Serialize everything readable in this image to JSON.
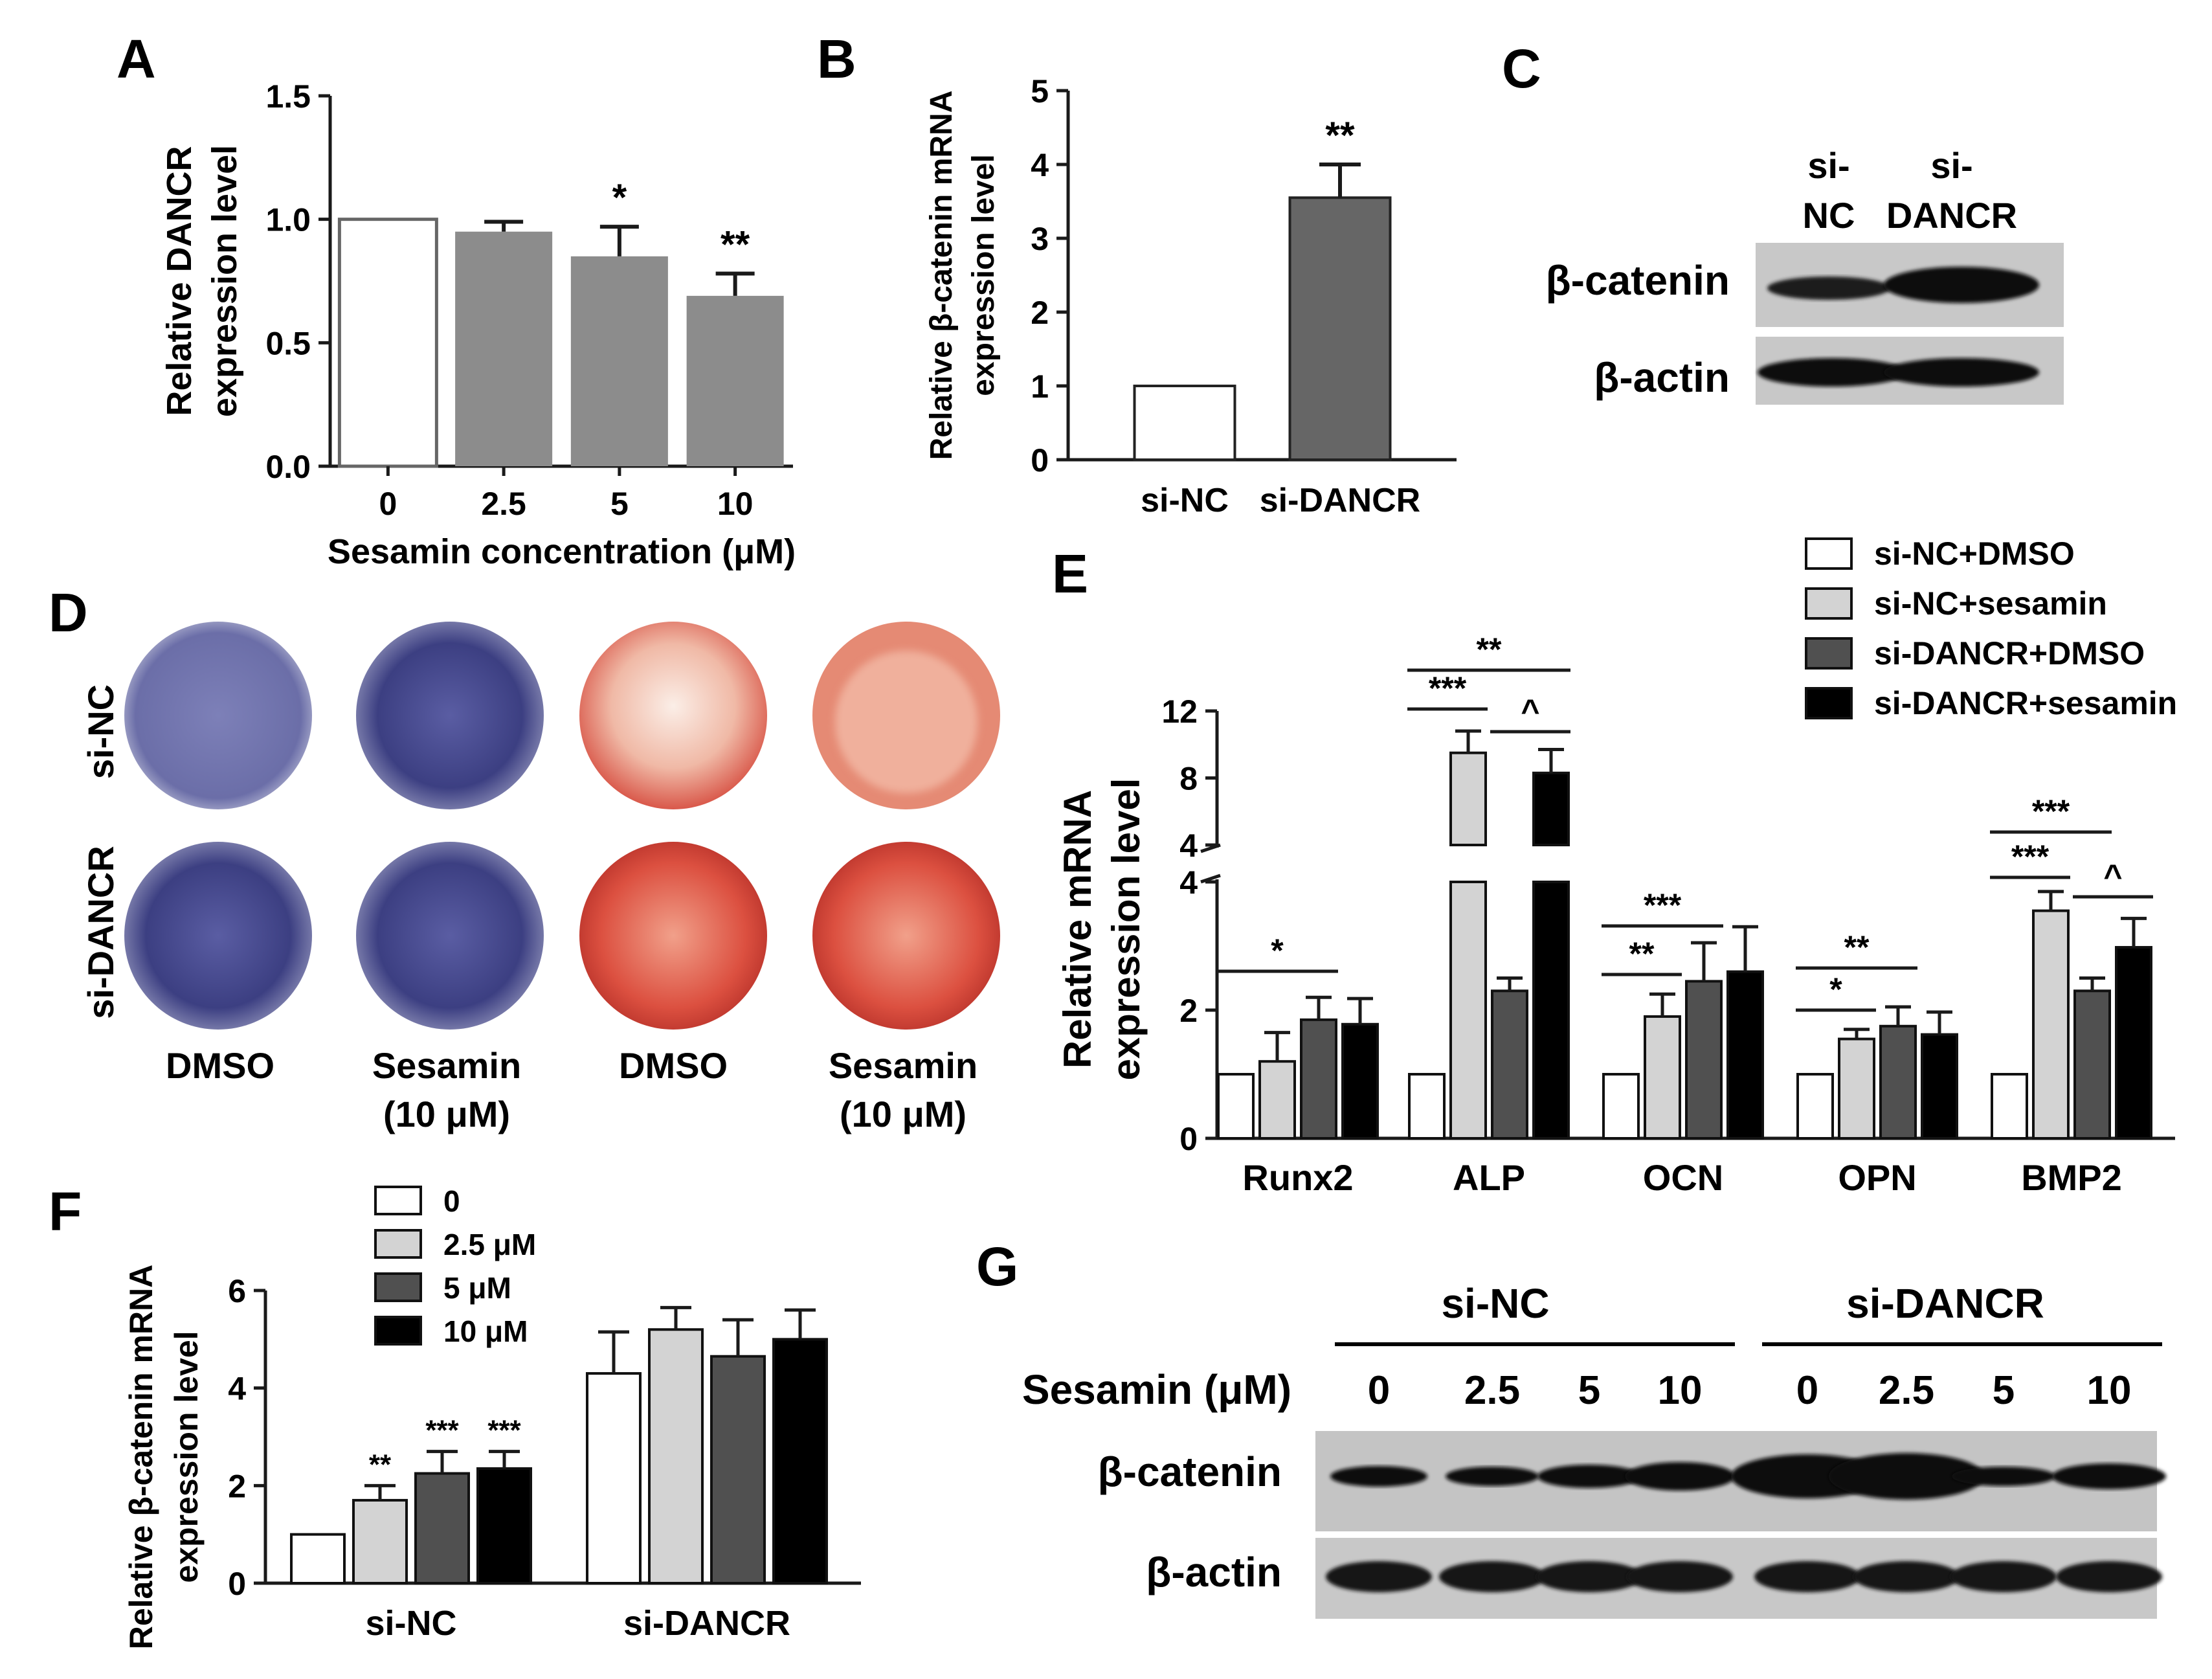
{
  "panels": {
    "A": {
      "letter": "A"
    },
    "B": {
      "letter": "B"
    },
    "C": {
      "letter": "C"
    },
    "D": {
      "letter": "D"
    },
    "E": {
      "letter": "E"
    },
    "F": {
      "letter": "F"
    },
    "G": {
      "letter": "G"
    }
  },
  "colors": {
    "white_bar": "#ffffff",
    "light_gray": "#d3d3d3",
    "mid_gray": "#8c8c8c",
    "dark_gray": "#666666",
    "darker_gray": "#505050",
    "black": "#000000",
    "axis": "#1a1a1a",
    "stain_blue": "#3c3f82",
    "stain_red": "#c8413a"
  },
  "panel_C": {
    "lanes": [
      "si-\nNC",
      "si-\nDANCR"
    ],
    "rows": [
      "β-catenin",
      "β-actin"
    ]
  },
  "panel_D": {
    "row_labels": [
      "si-NC",
      "si-DANCR"
    ],
    "col_labels": [
      "DMSO",
      "Sesamin\n(10 μM)",
      "DMSO",
      "Sesamin\n(10 μM)"
    ]
  },
  "panel_G": {
    "groups": [
      "si-NC",
      "si-DANCR"
    ],
    "treatment_label": "Sesamin (μM)",
    "doses": [
      "0",
      "2.5",
      "5",
      "10",
      "0",
      "2.5",
      "5",
      "10"
    ],
    "rows": [
      "β-catenin",
      "β-actin"
    ]
  },
  "chart_data": [
    {
      "id": "A",
      "type": "bar",
      "categories": [
        "0",
        "2.5",
        "5",
        "10"
      ],
      "values": [
        1.0,
        0.95,
        0.85,
        0.69
      ],
      "errors": [
        0,
        0.04,
        0.12,
        0.09
      ],
      "sig": [
        "",
        "",
        "*",
        "**"
      ],
      "xlabel": "Sesamin concentration (μM)",
      "ylabel": "Relative DANCR\nexpression level",
      "ylim": [
        0,
        1.5
      ],
      "yticks": [
        "0.0",
        "0.5",
        "1.0",
        "1.5"
      ]
    },
    {
      "id": "B",
      "type": "bar",
      "categories": [
        "si-NC",
        "si-DANCR"
      ],
      "values": [
        1.0,
        3.55
      ],
      "errors": [
        0,
        0.45
      ],
      "sig": [
        "",
        "**"
      ],
      "ylabel": "Relative β-catenin mRNA\nexpression level",
      "ylim": [
        0,
        5
      ],
      "yticks": [
        "0",
        "1",
        "2",
        "3",
        "4",
        "5"
      ]
    },
    {
      "id": "E",
      "type": "bar",
      "categories": [
        "Runx2",
        "ALP",
        "OCN",
        "OPN",
        "BMP2"
      ],
      "series": [
        {
          "name": "si-NC+DMSO",
          "values": [
            1.0,
            1.0,
            1.0,
            1.0,
            1.0
          ],
          "errors": [
            0,
            0,
            0,
            0,
            0
          ]
        },
        {
          "name": "si-NC+sesamin",
          "values": [
            1.2,
            9.5,
            1.9,
            1.55,
            3.55
          ],
          "errors": [
            0.45,
            1.3,
            0.35,
            0.15,
            0.3
          ]
        },
        {
          "name": "si-DANCR+DMSO",
          "values": [
            1.85,
            2.3,
            2.45,
            1.75,
            2.3
          ],
          "errors": [
            0.35,
            0.2,
            0.6,
            0.3,
            0.2
          ]
        },
        {
          "name": "si-DANCR+sesamin",
          "values": [
            1.78,
            8.3,
            2.6,
            1.62,
            2.98
          ],
          "errors": [
            0.4,
            1.4,
            0.7,
            0.35,
            0.45
          ]
        }
      ],
      "ylabel": "Relative mRNA\nexpression level",
      "axis_break": [
        4,
        4
      ],
      "ylim_lower": [
        0,
        4
      ],
      "ylim_upper": [
        4,
        12
      ],
      "yticks_lower": [
        "0",
        "2",
        "4"
      ],
      "yticks_upper": [
        "4",
        "8",
        "12"
      ],
      "legend": "top-right",
      "significance": [
        "*",
        "**",
        "***",
        "^",
        "***",
        "**",
        "**",
        "*",
        "***",
        "***",
        "^"
      ]
    },
    {
      "id": "F",
      "type": "bar",
      "categories": [
        "si-NC",
        "si-DANCR"
      ],
      "series": [
        {
          "name": "0",
          "values": [
            1.0,
            4.3
          ],
          "errors": [
            0,
            0.85
          ]
        },
        {
          "name": "2.5 μM",
          "values": [
            1.7,
            5.2
          ],
          "errors": [
            0.3,
            0.45
          ]
        },
        {
          "name": "5 μM",
          "values": [
            2.25,
            4.65
          ],
          "errors": [
            0.45,
            0.75
          ]
        },
        {
          "name": "10 μM",
          "values": [
            2.35,
            5.0
          ],
          "errors": [
            0.35,
            0.6
          ]
        }
      ],
      "sig": [
        [
          "",
          "**",
          "***",
          "***"
        ],
        [
          "",
          "",
          "",
          ""
        ]
      ],
      "ylabel": "Relative β-catenin mRNA\nexpression level",
      "ylim": [
        0,
        6
      ],
      "yticks": [
        "0",
        "2",
        "4",
        "6"
      ],
      "legend": "top-left"
    }
  ]
}
